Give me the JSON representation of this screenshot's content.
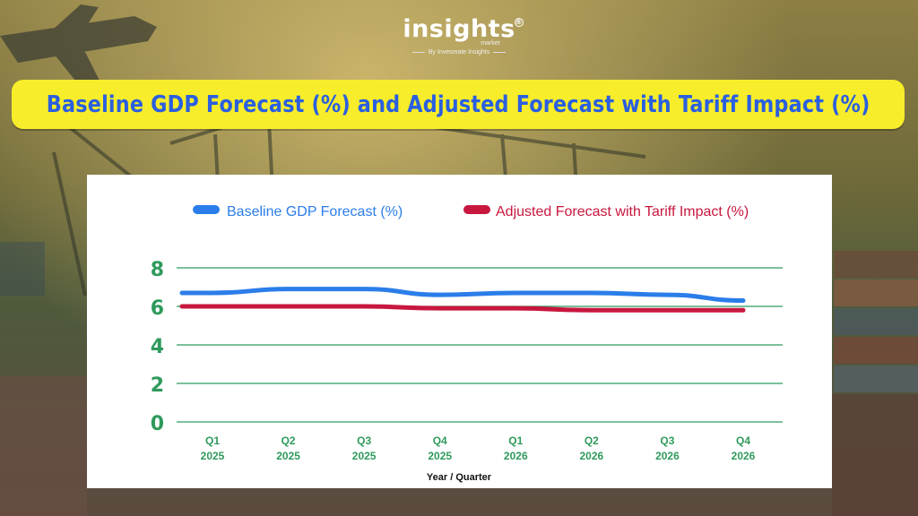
{
  "brand": {
    "logo_text": "insights",
    "registered": "®",
    "sub_text": "market",
    "tagline": "By Invesmate Insights"
  },
  "colors": {
    "baseline": "#2b7de9",
    "adjusted": "#c8173e",
    "grid": "#2f9a5c",
    "tick": "#2f9a5c",
    "title_bg": "#f7ed2a",
    "title_text": "#2a5fe0"
  },
  "chart_data": {
    "type": "line",
    "title": "Baseline GDP Forecast (%) and Adjusted Forecast with Tariff Impact (%)",
    "xlabel": "Year / Quarter",
    "ylabel": "",
    "ylim": [
      0,
      8
    ],
    "yticks": [
      "0",
      "2",
      "4",
      "6",
      "8"
    ],
    "categories": [
      [
        "Q1",
        "2025"
      ],
      [
        "Q2",
        "2025"
      ],
      [
        "Q3",
        "2025"
      ],
      [
        "Q4",
        "2025"
      ],
      [
        "Q1",
        "2026"
      ],
      [
        "Q2",
        "2026"
      ],
      [
        "Q3",
        "2026"
      ],
      [
        "Q4",
        "2026"
      ]
    ],
    "grid": true,
    "legend": "top",
    "series": [
      {
        "name": "Baseline GDP Forecast (%)",
        "values": [
          6.7,
          6.9,
          6.9,
          6.6,
          6.7,
          6.7,
          6.6,
          6.3
        ]
      },
      {
        "name": "Adjusted Forecast with Tariff Impact (%)",
        "values": [
          6.0,
          6.0,
          6.0,
          5.9,
          5.9,
          5.8,
          5.8,
          5.8
        ]
      }
    ]
  }
}
